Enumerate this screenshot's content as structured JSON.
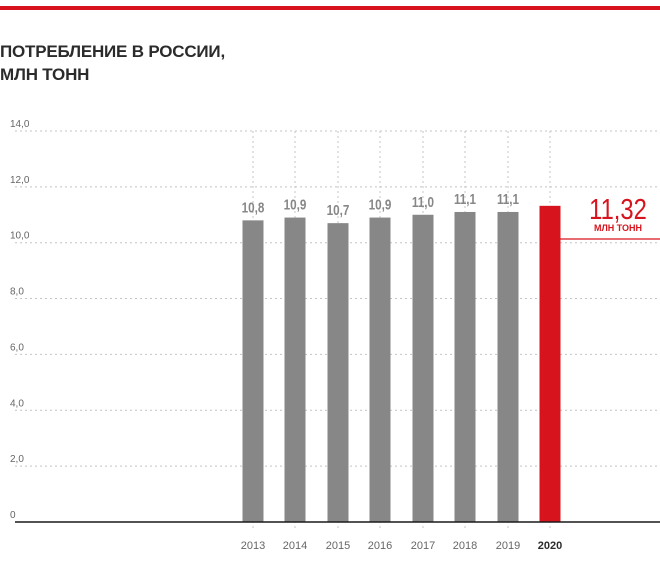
{
  "colors": {
    "accent": "#d7141e",
    "bar": "#878787",
    "grid": "#c4c4c4",
    "text": "#2b2b2b",
    "axis_text": "#666666"
  },
  "title": {
    "line1": "ПОТРЕБЛЕНИЕ В РОССИИ,",
    "line2": "МЛН ТОНН"
  },
  "chart_data": {
    "type": "bar",
    "title": "ПОТРЕБЛЕНИЕ В РОССИИ, МЛН ТОНН",
    "categories": [
      "2013",
      "2014",
      "2015",
      "2016",
      "2017",
      "2018",
      "2019",
      "2020"
    ],
    "values": [
      10.8,
      10.9,
      10.7,
      10.9,
      11.0,
      11.1,
      11.1,
      11.32
    ],
    "data_labels": [
      "10,8",
      "10,9",
      "10,7",
      "10,9",
      "11,0",
      "11,1",
      "11,1",
      ""
    ],
    "highlight_category": "2020",
    "highlight_label": "11,32",
    "highlight_unit": "МЛН ТОНН",
    "yticks": [
      0,
      2,
      4,
      6,
      8,
      10,
      12,
      14
    ],
    "ytick_labels": [
      "0",
      "2,0",
      "4,0",
      "6,0",
      "8,0",
      "10,0",
      "12,0",
      "14,0"
    ],
    "ylim": [
      0,
      14
    ],
    "grid": true,
    "xlabel": "",
    "ylabel": ""
  }
}
